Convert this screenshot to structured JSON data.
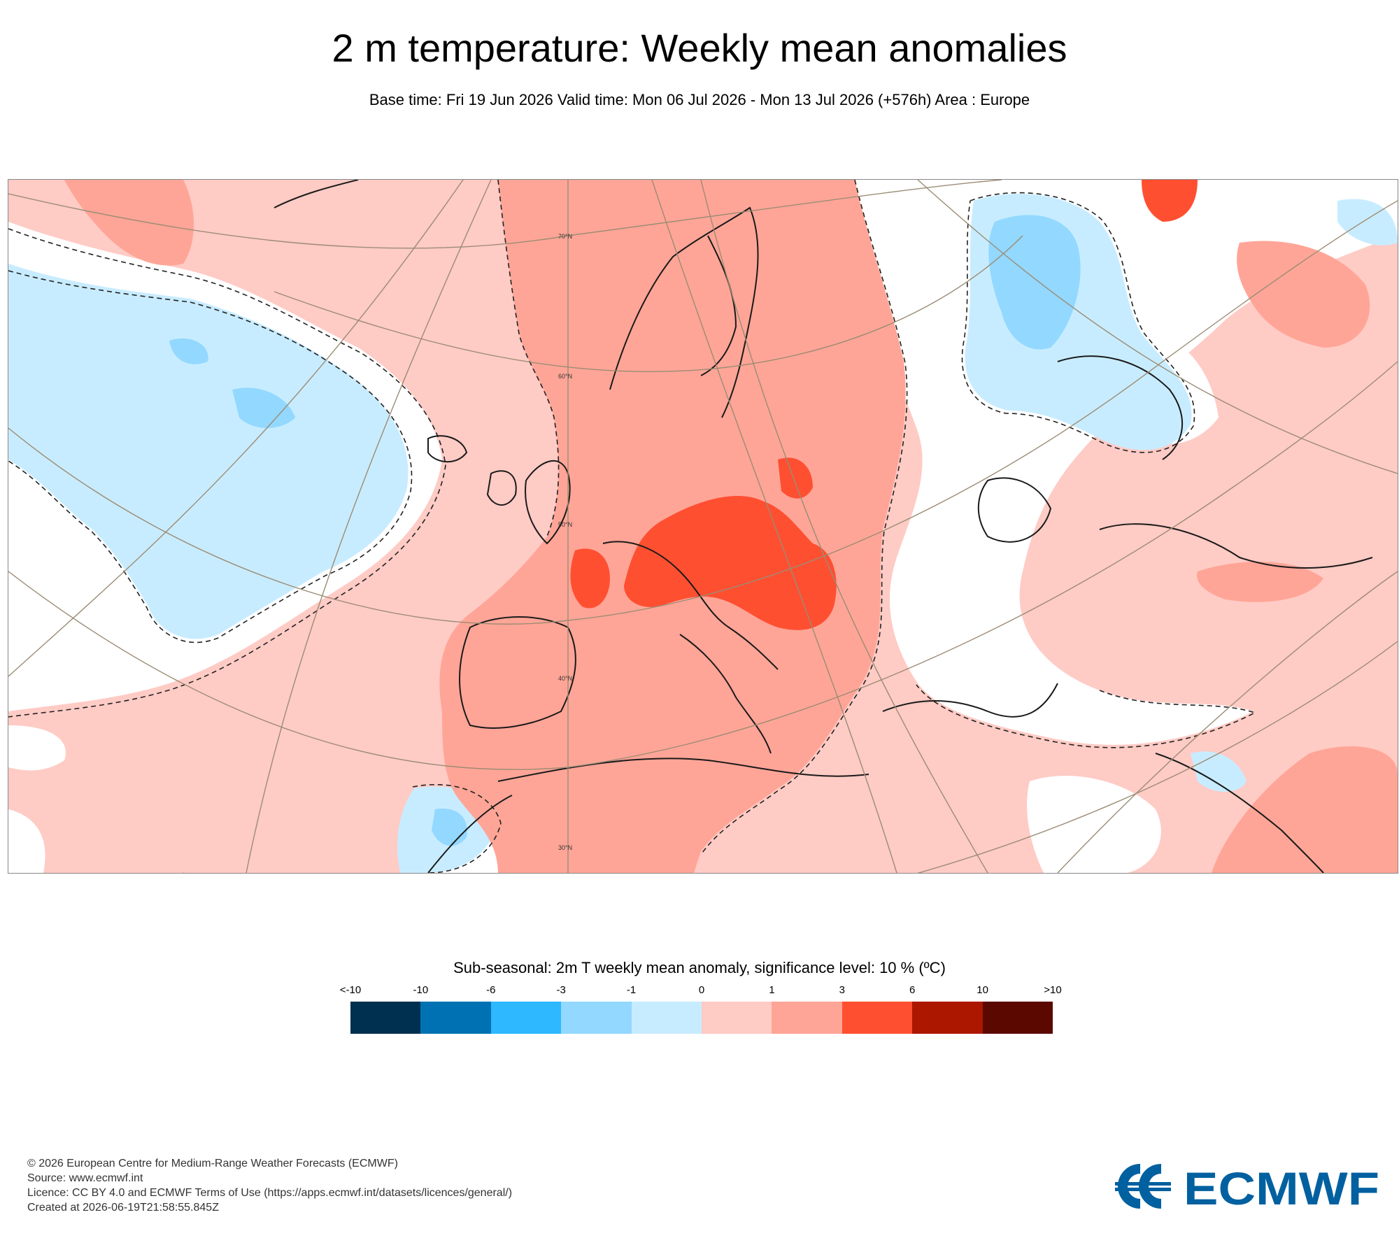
{
  "header": {
    "title": "2 m temperature: Weekly mean anomalies",
    "subtitle": "Base time: Fri 19 Jun 2026 Valid time: Mon 06 Jul 2026 - Mon 13 Jul 2026 (+576h) Area : Europe"
  },
  "map": {
    "area": "Europe",
    "latitude_labels": [
      "70°N",
      "60°N",
      "50°N",
      "40°N",
      "30°N"
    ],
    "colors": {
      "ocean_background": "#ffcbc5",
      "land_warm": "#ffa597",
      "hot_core": "#ff4f31",
      "cool_light": "#c8ecff",
      "cool": "#93d8ff",
      "neutral": "#ffffff",
      "grid_line": "#9b8c74",
      "coastline": "#1a1a1a"
    }
  },
  "legend": {
    "title": "Sub-seasonal: 2m T weekly mean anomaly, significance level: 10 % (ºC)",
    "ticks": [
      "<-10",
      "-10",
      "-6",
      "-3",
      "-1",
      "0",
      "1",
      "3",
      "6",
      "10",
      ">10"
    ],
    "colors": [
      "#00304f",
      "#0072b3",
      "#2db8ff",
      "#93d8ff",
      "#c8ecff",
      "#ffcbc5",
      "#ffa597",
      "#ff4f31",
      "#ac1700",
      "#5b0900"
    ]
  },
  "footer": {
    "copyright": "© 2026 European Centre for Medium-Range Weather Forecasts (ECMWF)",
    "source": "Source: www.ecmwf.int",
    "licence": "Licence: CC BY 4.0 and ECMWF Terms of Use (https://apps.ecmwf.int/datasets/licences/general/)",
    "created": "Created at 2026-06-19T21:58:55.845Z"
  },
  "logo": {
    "text": "ECMWF",
    "color": "#0060a0"
  }
}
